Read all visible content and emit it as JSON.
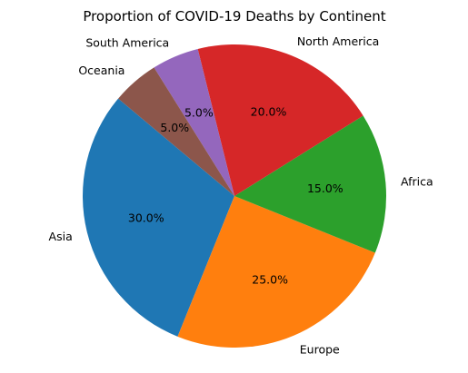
{
  "chart_data": {
    "type": "pie",
    "title": "Proportion of COVID-19 Deaths by Continent",
    "categories": [
      "Asia",
      "Europe",
      "Africa",
      "North America",
      "South America",
      "Oceania"
    ],
    "values": [
      30,
      25,
      15,
      20,
      5,
      5
    ],
    "percent_labels": [
      "30.0%",
      "25.0%",
      "15.0%",
      "20.0%",
      "5.0%",
      "5.0%"
    ],
    "colors": [
      "#1f77b4",
      "#ff7f0e",
      "#2ca02c",
      "#d62728",
      "#9467bd",
      "#8c564b"
    ],
    "start_angle_deg": 140,
    "direction": "counterclockwise"
  }
}
